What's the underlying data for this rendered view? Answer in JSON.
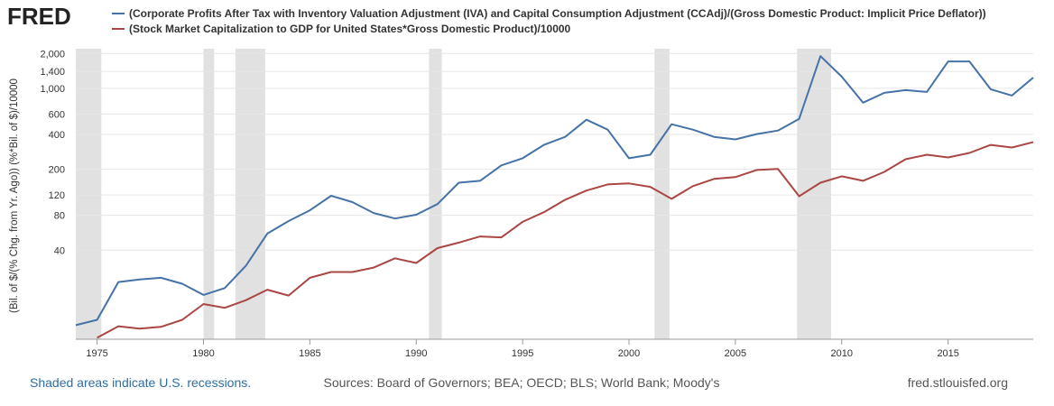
{
  "chart_data": {
    "type": "line",
    "logo": "FRED",
    "ylabel": "(Bil. of $/(% Chg. from Yr. Ago))  (%*Bil. of $)/10000",
    "note": "Shaded areas indicate U.S. recessions.",
    "source": "Sources: Board of Governors; BEA; OECD; BLS; World Bank; Moody's",
    "site": "fred.stlouisfed.org",
    "log_scale": true,
    "grid": true,
    "xlim": [
      1974,
      2019
    ],
    "ylim": [
      6.8,
      2200
    ],
    "xticks": [
      1975,
      1980,
      1985,
      1990,
      1995,
      2000,
      2005,
      2010,
      2015
    ],
    "yticks": [
      {
        "value": 2000,
        "label": "2,000"
      },
      {
        "value": 1400,
        "label": "1,400"
      },
      {
        "value": 1000,
        "label": "1,000"
      },
      600,
      400,
      200,
      120,
      80,
      40
    ],
    "recessions": [
      [
        1974,
        1975.2
      ],
      [
        1980,
        1980.5
      ],
      [
        1981.5,
        1982.9
      ],
      [
        1990.6,
        1991.2
      ],
      [
        2001.2,
        2001.9
      ],
      [
        2007.9,
        2009.5
      ]
    ],
    "x": [
      1974,
      1975,
      1976,
      1977,
      1978,
      1979,
      1980,
      1981,
      1982,
      1983,
      1984,
      1985,
      1986,
      1987,
      1988,
      1989,
      1990,
      1991,
      1992,
      1993,
      1994,
      1995,
      1996,
      1997,
      1998,
      1999,
      2000,
      2001,
      2002,
      2003,
      2004,
      2005,
      2006,
      2007,
      2008,
      2009,
      2010,
      2011,
      2012,
      2013,
      2014,
      2015,
      2016,
      2017,
      2018,
      2019
    ],
    "series": [
      {
        "name": "(Corporate Profits After Tax with Inventory Valuation Adjustment (IVA) and Capital Consumption Adjustment (CCAdj)/(Gross Domestic Product: Implicit Price Deflator))",
        "color": "#4572a7",
        "values": [
          9.0,
          10,
          21.2,
          22.3,
          23.1,
          20.5,
          16.4,
          18.8,
          29.4,
          55.6,
          71.4,
          88.4,
          118,
          104,
          83.8,
          75.1,
          80.9,
          100,
          153,
          159,
          216,
          249,
          325,
          381,
          536,
          440,
          249,
          267,
          490,
          440,
          381,
          362,
          403,
          432,
          545,
          1900,
          1261,
          752,
          915,
          965,
          931,
          1708,
          1708,
          983,
          867,
          1239
        ]
      },
      {
        "name": "(Stock Market Capitalization to GDP for United States*Gross Domestic Product)/10000",
        "color": "#aa4643",
        "values": [
          null,
          7.0,
          8.8,
          8.4,
          8.7,
          10,
          13.7,
          12.7,
          14.8,
          18.2,
          16.2,
          23.1,
          25.9,
          25.9,
          28.3,
          34.0,
          31.0,
          41.7,
          46.5,
          52.5,
          51.6,
          70.2,
          85.1,
          109,
          131,
          148,
          151,
          141,
          111,
          143,
          165,
          171,
          197,
          201,
          117,
          153,
          174,
          159,
          190,
          244,
          267,
          253,
          277,
          325,
          308,
          343
        ]
      }
    ]
  }
}
